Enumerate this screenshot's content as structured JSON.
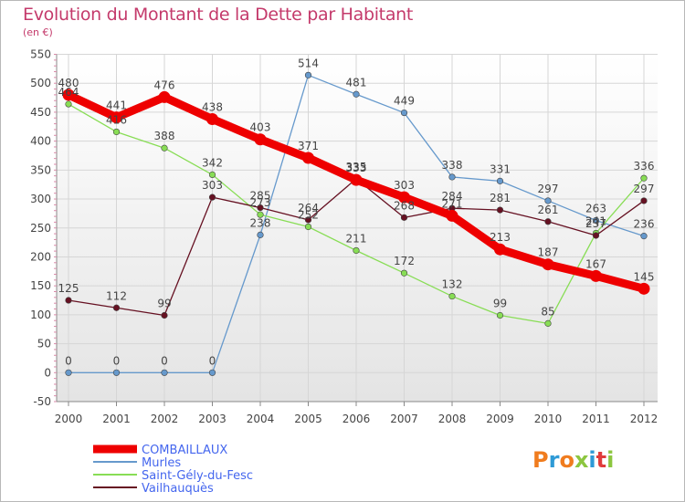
{
  "header": {
    "title": "Evolution du Montant de la Dette par Habitant",
    "subtitle": "(en €)"
  },
  "logo": {
    "text": "Proxiti",
    "colors": [
      "#f07c1e",
      "#2e9ad6",
      "#f07c1e",
      "#8cc63f",
      "#2e9ad6",
      "#e03c3c",
      "#8cc63f"
    ]
  },
  "chart_data": {
    "type": "line",
    "title": "Evolution du Montant de la Dette par Habitant",
    "subtitle": "(en €)",
    "xlabel": "",
    "ylabel": "",
    "x": [
      "2000",
      "2001",
      "2002",
      "2003",
      "2004",
      "2005",
      "2006",
      "2007",
      "2008",
      "2009",
      "2010",
      "2011",
      "2012"
    ],
    "ylim": [
      -50,
      550
    ],
    "yticks": [
      -50,
      0,
      50,
      100,
      150,
      200,
      250,
      300,
      350,
      400,
      450,
      500,
      550
    ],
    "grid": true,
    "legend_position": "bottom-left",
    "series": [
      {
        "name": "COMBAILLAUX",
        "color": "#ee0000",
        "values": [
          480,
          441,
          476,
          438,
          403,
          371,
          333,
          303,
          271,
          213,
          187,
          167,
          145
        ],
        "labels": [
          "480",
          "441",
          "476",
          "438",
          "403",
          "371",
          "333",
          "303",
          "271",
          "213",
          "187",
          "167",
          "145"
        ]
      },
      {
        "name": "Murles",
        "color": "#6699cc",
        "values": [
          0,
          0,
          0,
          0,
          238,
          514,
          481,
          449,
          338,
          331,
          297,
          263,
          236
        ],
        "labels": [
          "0",
          "0",
          "0",
          "0",
          "238",
          "514",
          "481",
          "449",
          "338",
          "331",
          "297",
          "263",
          "236"
        ]
      },
      {
        "name": "Saint-Gély-du-Fesc",
        "color": "#88dd55",
        "values": [
          464,
          416,
          388,
          342,
          273,
          252,
          211,
          172,
          132,
          99,
          85,
          241,
          336
        ],
        "labels": [
          "464",
          "416",
          "388",
          "342",
          "273",
          "252",
          "211",
          "172",
          "132",
          "99",
          "85",
          "241",
          "336"
        ]
      },
      {
        "name": "Vailhauquès",
        "color": "#661122",
        "values": [
          125,
          112,
          99,
          303,
          285,
          264,
          335,
          268,
          284,
          281,
          261,
          237,
          297
        ],
        "labels": [
          "125",
          "112",
          "99",
          "303",
          "285",
          "264",
          "335",
          "268",
          "284",
          "281",
          "261",
          "237",
          "297"
        ]
      }
    ]
  }
}
